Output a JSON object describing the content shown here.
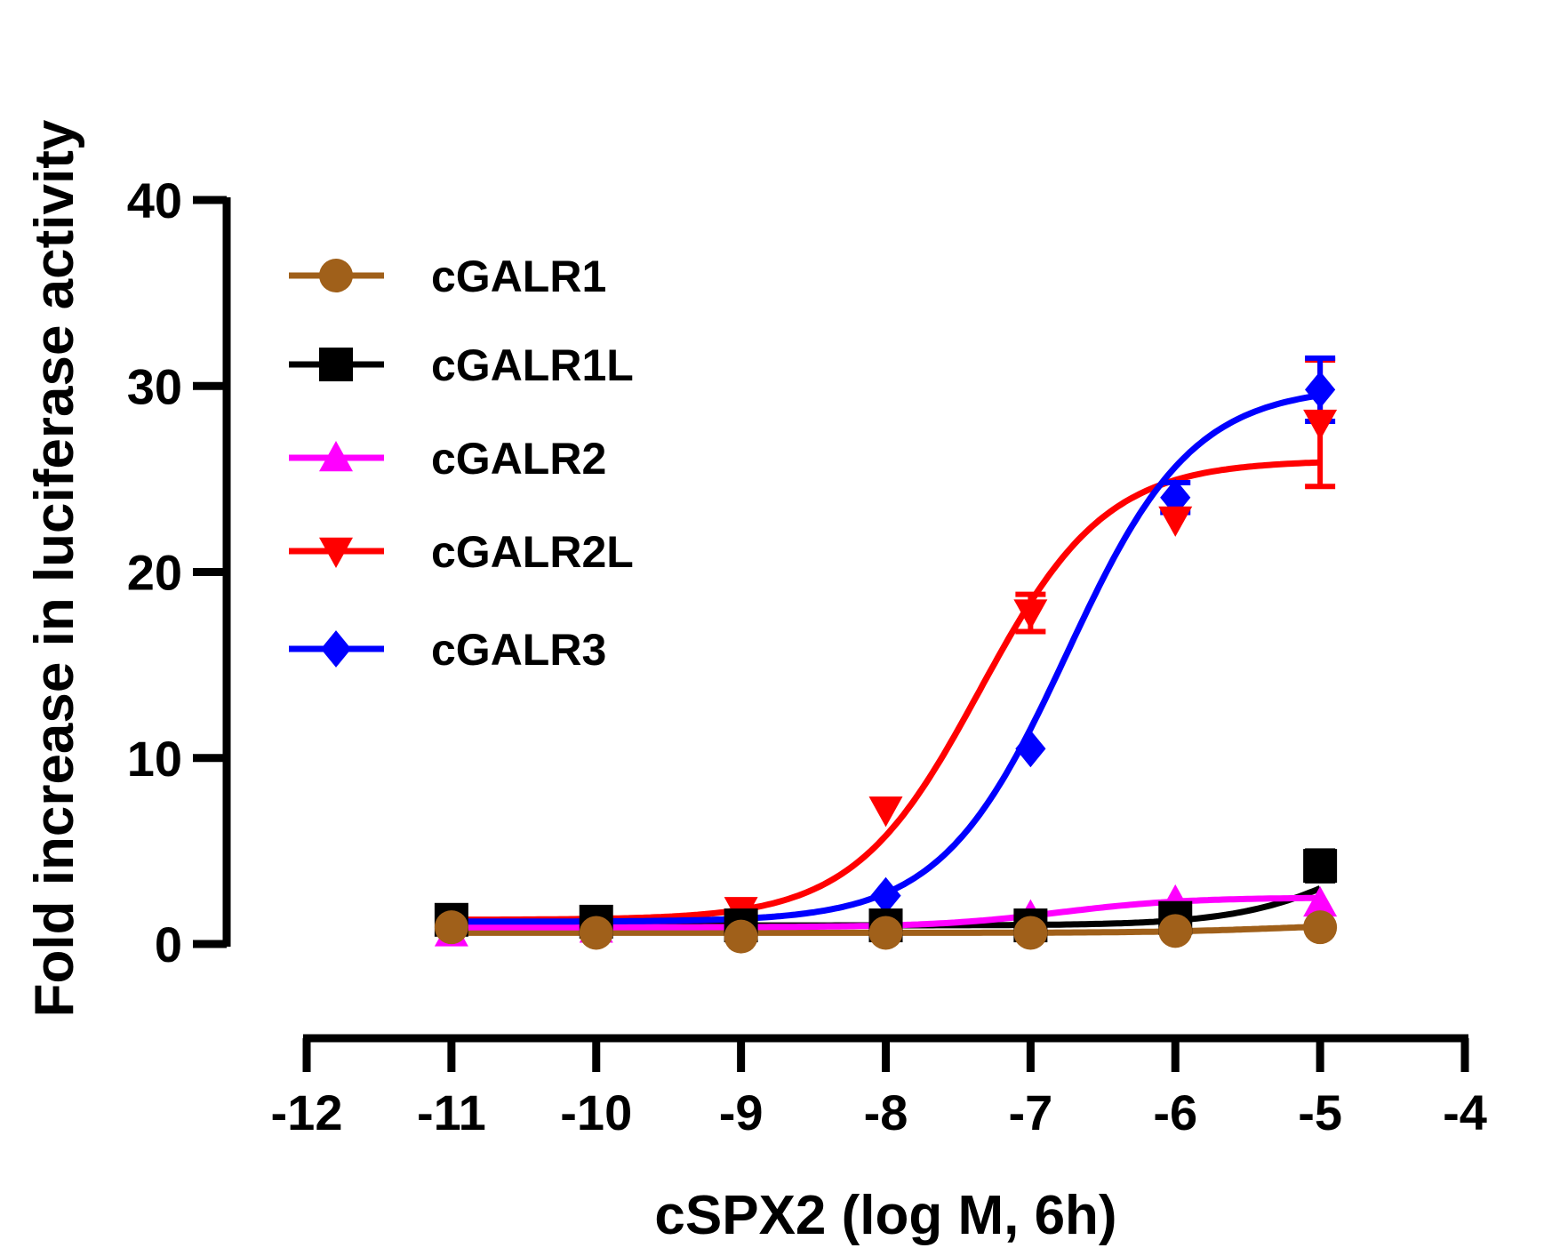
{
  "chart_data": {
    "type": "line",
    "xlabel": "cSPX2 (log M, 6h)",
    "ylabel": "Fold increase in luciferase activity",
    "xlim": [
      -12,
      -4
    ],
    "ylim": [
      0,
      40
    ],
    "xticks": [
      -12,
      -11,
      -10,
      -9,
      -8,
      -7,
      -6,
      -5,
      -4
    ],
    "yticks": [
      0,
      10,
      20,
      30,
      40
    ],
    "grid": false,
    "legend_position": "top-left",
    "series": [
      {
        "name": "cGALR1",
        "color": "#A0601A",
        "marker": "circle",
        "x": [
          -11,
          -10,
          -9,
          -8,
          -7,
          -6,
          -5
        ],
        "y": [
          0.9,
          0.6,
          0.4,
          0.6,
          0.6,
          0.7,
          0.9
        ],
        "error": [
          0,
          0,
          0,
          0,
          0,
          0,
          0
        ],
        "fit": {
          "bottom": 0.6,
          "top": 1.1,
          "logec50": -5.3,
          "hill": 1
        }
      },
      {
        "name": "cGALR1L",
        "color": "#000000",
        "marker": "square",
        "x": [
          -11,
          -10,
          -9,
          -8,
          -7,
          -6,
          -5
        ],
        "y": [
          1.3,
          1.2,
          1.0,
          1.0,
          1.0,
          1.4,
          4.2
        ],
        "error": [
          0,
          0,
          0,
          0,
          0,
          0,
          0.8
        ],
        "fit": {
          "bottom": 1.0,
          "top": 8.0,
          "logec50": -4.6,
          "hill": 1
        }
      },
      {
        "name": "cGALR2",
        "color": "#FF00FF",
        "marker": "triangle-up",
        "x": [
          -11,
          -10,
          -9,
          -8,
          -7,
          -6,
          -5
        ],
        "y": [
          0.6,
          0.8,
          1.0,
          1.0,
          1.5,
          2.3,
          2.2
        ],
        "error": [
          0,
          0,
          0,
          0,
          0,
          0,
          0
        ],
        "fit": {
          "bottom": 0.9,
          "top": 2.5,
          "logec50": -6.8,
          "hill": 1
        }
      },
      {
        "name": "cGALR2L",
        "color": "#FF0000",
        "marker": "triangle-down",
        "x": [
          -11,
          -10,
          -9,
          -8,
          -7,
          -6,
          -5
        ],
        "y": [
          1.3,
          1.3,
          1.8,
          7.2,
          17.8,
          22.8,
          28.0
        ],
        "error": [
          0,
          0,
          0,
          0,
          1.0,
          0,
          3.4
        ],
        "fit": {
          "bottom": 1.3,
          "top": 26.0,
          "logec50": -7.35,
          "hill": 1
        }
      },
      {
        "name": "cGALR3",
        "color": "#0000FF",
        "marker": "diamond",
        "x": [
          -11,
          -10,
          -9,
          -8,
          -7,
          -6,
          -5
        ],
        "y": [
          1.0,
          1.1,
          1.2,
          2.6,
          10.5,
          24.0,
          29.8
        ],
        "error": [
          0,
          0,
          0,
          0,
          0,
          0.8,
          1.7
        ],
        "fit": {
          "bottom": 1.2,
          "top": 30.0,
          "logec50": -6.75,
          "hill": 1
        }
      }
    ]
  }
}
